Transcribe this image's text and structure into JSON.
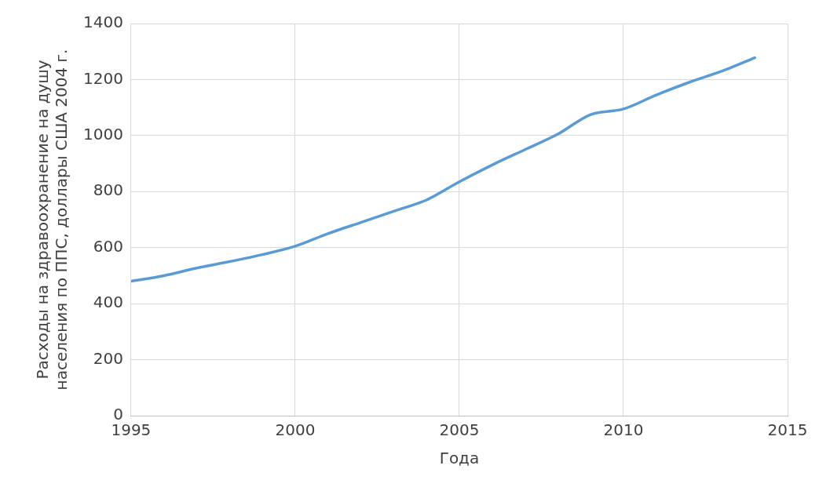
{
  "chart_data": {
    "type": "line",
    "xlabel": "Года",
    "ylabel": "Расходы на здравоохранение на душу населения по ППС, доллары США 2004 г.",
    "x": [
      1995,
      1996,
      1997,
      1998,
      1999,
      2000,
      2001,
      2002,
      2003,
      2004,
      2005,
      2006,
      2007,
      2008,
      2009,
      2010,
      2011,
      2012,
      2013,
      2014
    ],
    "series": [
      {
        "color": "#5b9bd5",
        "values": [
          480,
          500,
          527,
          550,
          575,
          605,
          650,
          690,
          730,
          770,
          835,
          895,
          950,
          1005,
          1075,
          1095,
          1145,
          1190,
          1230,
          1278
        ]
      }
    ],
    "xlim": [
      1995,
      2015
    ],
    "xticks": [
      1995,
      2000,
      2005,
      2010,
      2015
    ],
    "ylim": [
      0,
      1400
    ],
    "yticks": [
      0,
      200,
      400,
      600,
      800,
      1000,
      1200,
      1400
    ],
    "grid": true,
    "legend": false,
    "marker": "none",
    "line_style": "solid"
  }
}
